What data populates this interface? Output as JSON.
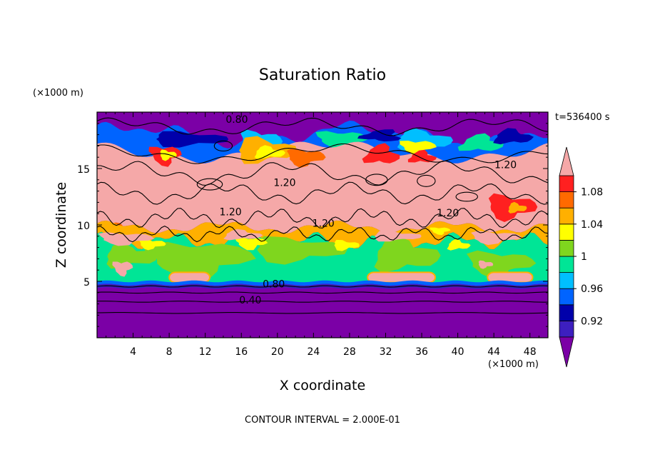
{
  "chart_data": {
    "type": "contour",
    "title": "Saturation Ratio",
    "xlabel": "X coordinate",
    "ylabel": "Z coordinate",
    "x_unit": "(×1000 m)",
    "y_unit": "(×1000 m)",
    "time_label": "t=536400 s",
    "footer": "CONTOUR INTERVAL = 2.000E-01",
    "xlim": [
      0,
      50
    ],
    "ylim": [
      0,
      20
    ],
    "x_ticks": [
      4,
      8,
      12,
      16,
      20,
      24,
      28,
      32,
      36,
      40,
      44,
      48
    ],
    "y_ticks": [
      5,
      10,
      15
    ],
    "colorbar": {
      "levels": [
        0.92,
        0.96,
        1,
        1.04,
        1.08
      ],
      "labels": [
        "0.92",
        "0.96",
        "1",
        "1.04",
        "1.08"
      ],
      "colors": [
        "#7b00a6",
        "#3d1fbf",
        "#0000aa",
        "#0064ff",
        "#00bfff",
        "#00e596",
        "#7fd61e",
        "#ffff00",
        "#ffb000",
        "#ff6a00",
        "#ff2020",
        "#f5a8a8"
      ]
    },
    "contour_labels": [
      {
        "text": "0.80",
        "x": 15.5,
        "z": 19.3
      },
      {
        "text": "1.20",
        "x": 45.3,
        "z": 15.3
      },
      {
        "text": "1.20",
        "x": 20.8,
        "z": 13.7
      },
      {
        "text": "1.20",
        "x": 14.8,
        "z": 11.1
      },
      {
        "text": "1.20",
        "x": 25.1,
        "z": 10.1
      },
      {
        "text": "1.20",
        "x": 38.9,
        "z": 11.0
      },
      {
        "text": "0.80",
        "x": 19.6,
        "z": 4.7
      },
      {
        "text": "0.40",
        "x": 17.0,
        "z": 3.3
      }
    ]
  }
}
